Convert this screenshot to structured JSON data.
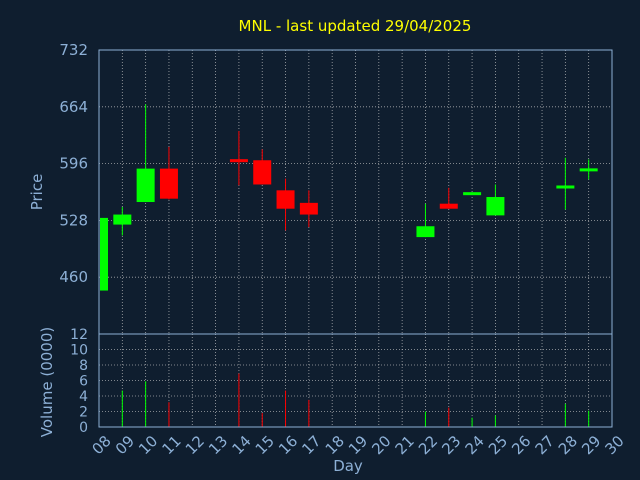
{
  "chart_data": {
    "type": "candlestick",
    "title": "MNL - last updated 29/04/2025",
    "price_axis": {
      "label": "Price",
      "ylim": [
        392,
        732
      ],
      "ticks": [
        "460",
        "528",
        "596",
        "664",
        "732"
      ]
    },
    "volume_axis": {
      "label": "Volume (0000)",
      "ylim": [
        0,
        12
      ],
      "ticks": [
        "0",
        "2",
        "4",
        "6",
        "8",
        "10",
        "12"
      ]
    },
    "x_axis": {
      "label": "Day",
      "ticks": [
        "08",
        "09",
        "10",
        "11",
        "12",
        "13",
        "14",
        "15",
        "16",
        "17",
        "18",
        "19",
        "20",
        "21",
        "22",
        "23",
        "24",
        "25",
        "26",
        "27",
        "28",
        "29",
        "30"
      ]
    },
    "grid": true,
    "colors": {
      "up": "#00ff00",
      "down": "#ff0000",
      "background": "#0f1e2f",
      "text": "#8db0d6",
      "title": "#ffff00",
      "frame": "#8db0d6",
      "grid": "#cccccc"
    },
    "candles": [
      {
        "day": "08",
        "open": 444,
        "high": 531,
        "low": 444,
        "close": 531,
        "volume": 0
      },
      {
        "day": "09",
        "open": 523,
        "high": 544,
        "low": 510,
        "close": 535,
        "volume": 4.7
      },
      {
        "day": "10",
        "open": 550,
        "high": 667,
        "low": 550,
        "close": 590,
        "volume": 5.9
      },
      {
        "day": "11",
        "open": 590,
        "high": 616,
        "low": 553,
        "close": 554,
        "volume": 3.2
      },
      {
        "day": "14",
        "open": 601,
        "high": 635,
        "low": 570,
        "close": 598,
        "volume": 6.9
      },
      {
        "day": "15",
        "open": 600,
        "high": 613,
        "low": 571,
        "close": 571,
        "volume": 1.8
      },
      {
        "day": "16",
        "open": 564,
        "high": 578,
        "low": 516,
        "close": 542,
        "volume": 4.7
      },
      {
        "day": "17",
        "open": 549,
        "high": 564,
        "low": 520,
        "close": 535,
        "volume": 3.5
      },
      {
        "day": "22",
        "open": 508,
        "high": 548,
        "low": 508,
        "close": 521,
        "volume": 2.0
      },
      {
        "day": "23",
        "open": 548,
        "high": 567,
        "low": 542,
        "close": 542,
        "volume": 2.5
      },
      {
        "day": "24",
        "open": 559,
        "high": 561,
        "low": 559,
        "close": 561,
        "volume": 1.2
      },
      {
        "day": "25",
        "open": 534,
        "high": 571,
        "low": 534,
        "close": 556,
        "volume": 1.5
      },
      {
        "day": "28",
        "open": 567,
        "high": 603,
        "low": 541,
        "close": 569,
        "volume": 3.0
      },
      {
        "day": "29",
        "open": 587,
        "high": 601,
        "low": 577,
        "close": 590,
        "volume": 2.1
      }
    ]
  }
}
